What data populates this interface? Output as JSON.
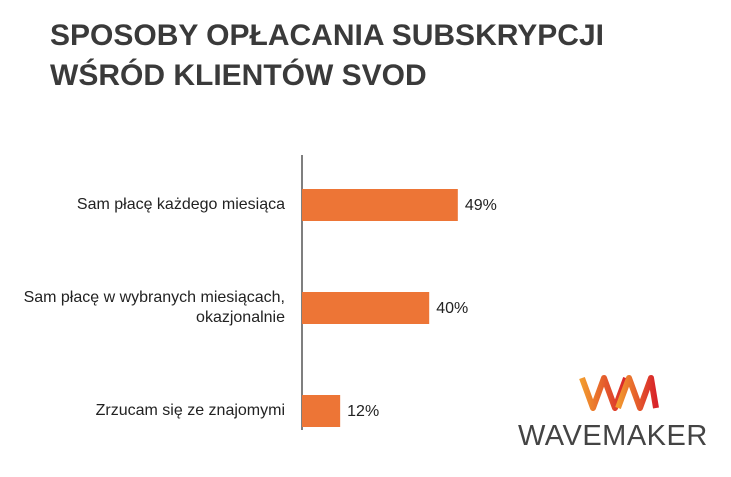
{
  "chart_data": {
    "type": "bar",
    "orientation": "horizontal",
    "title": [
      "SPOSOBY OPŁACANIA SUBSKRYPCJI",
      "WŚRÓD KLIENTÓW SVOD"
    ],
    "categories": [
      "Sam płacę każdego miesiąca",
      "Sam płacę w wybranych miesiącach, okazjonalnie",
      "Zrzucam się ze znajomymi"
    ],
    "values": [
      49,
      40,
      12
    ],
    "value_labels": [
      "49%",
      "40%",
      "12%"
    ],
    "color": "#ed7536"
  },
  "logo": "WAVEMAKER"
}
